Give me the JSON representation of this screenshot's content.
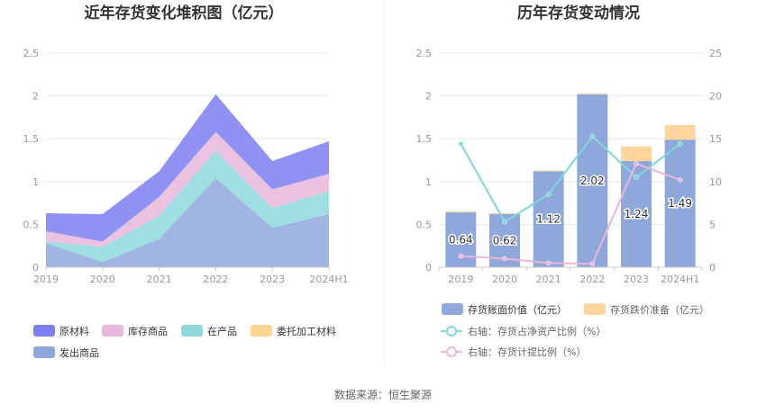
{
  "source": "数据来源：恒生聚源",
  "chart_data": [
    {
      "type": "area",
      "stacked": true,
      "title": "近年存货变化堆积图（亿元）",
      "categories": [
        "2019",
        "2020",
        "2021",
        "2022",
        "2023",
        "2024H1"
      ],
      "ylim": [
        0,
        2.5
      ],
      "yticks": [
        "0",
        "0.5",
        "1",
        "1.5",
        "2",
        "2.5"
      ],
      "grid": true,
      "legend_position": "bottom",
      "series": [
        {
          "name": "发出商品",
          "color": "#8fa8dc",
          "values": [
            0.28,
            0.06,
            0.33,
            1.04,
            0.46,
            0.62
          ]
        },
        {
          "name": "在产品",
          "color": "#8ed8dc",
          "values": [
            0.02,
            0.18,
            0.27,
            0.32,
            0.23,
            0.27
          ]
        },
        {
          "name": "库存商品",
          "color": "#e8b9dc",
          "values": [
            0.12,
            0.06,
            0.22,
            0.22,
            0.22,
            0.2
          ]
        },
        {
          "name": "委托加工材料",
          "color": "#ffd591",
          "values": [
            0,
            0,
            0,
            0,
            0,
            0
          ]
        },
        {
          "name": "原材料",
          "color": "#7b7ff0",
          "values": [
            0.21,
            0.32,
            0.3,
            0.44,
            0.33,
            0.38
          ]
        }
      ],
      "legend": [
        {
          "name": "原材料",
          "color": "#7b7ff0"
        },
        {
          "name": "库存商品",
          "color": "#e8b9dc"
        },
        {
          "name": "在产品",
          "color": "#8ed8dc"
        },
        {
          "name": "委托加工材料",
          "color": "#ffd591"
        },
        {
          "name": "发出商品",
          "color": "#8fa8dc"
        }
      ]
    },
    {
      "type": "bar",
      "title": "历年存货变动情况",
      "categories": [
        "2019",
        "2020",
        "2021",
        "2022",
        "2023",
        "2024H1"
      ],
      "ylim": [
        0,
        2.5
      ],
      "yticks": [
        "0",
        "0.5",
        "1",
        "1.5",
        "2",
        "2.5"
      ],
      "y2lim": [
        0,
        25
      ],
      "y2ticks": [
        "0",
        "5",
        "10",
        "15",
        "20",
        "25"
      ],
      "grid": true,
      "legend_position": "bottom",
      "bar_series": [
        {
          "name": "存货账面价值（亿元）",
          "color": "#8fa8dc",
          "values": [
            0.64,
            0.62,
            1.12,
            2.02,
            1.24,
            1.49
          ],
          "labels": [
            "0.64",
            "0.62",
            "1.12",
            "2.02",
            "1.24",
            "1.49"
          ]
        },
        {
          "name": "存货跌价准备（亿元）",
          "color": "#ffd59e",
          "values": [
            0.01,
            0.01,
            0.01,
            0.01,
            0.17,
            0.17
          ]
        }
      ],
      "line_series": [
        {
          "name": "右轴：存货占净资产比例（%）",
          "color": "#7fd6dc",
          "values": [
            14.4,
            5.3,
            8.5,
            15.3,
            10.5,
            14.4
          ]
        },
        {
          "name": "右轴：存货计提比例（%）",
          "color": "#ecb6dc",
          "values": [
            1.3,
            1.0,
            0.5,
            0.4,
            12.1,
            10.2
          ]
        }
      ]
    }
  ]
}
